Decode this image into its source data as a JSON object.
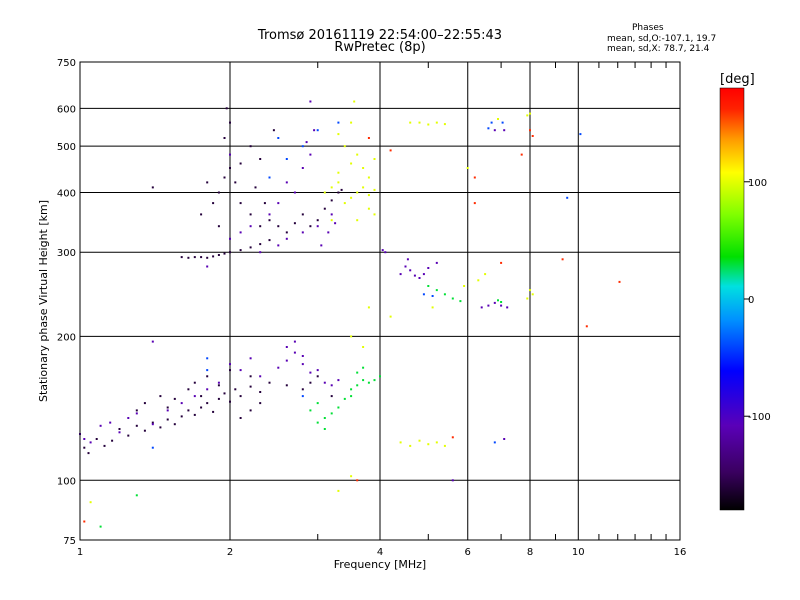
{
  "chart_data": {
    "type": "scatter",
    "title": "Tromsø 20161119 22:54:00–22:55:43",
    "subtitle": "RwPretec (8p)",
    "xlabel": "Frequency [MHz]",
    "ylabel": "Stationary phase Virtual Height [km]",
    "x_scale": "log",
    "y_scale": "log",
    "xlim": [
      1,
      16
    ],
    "ylim": [
      75,
      750
    ],
    "x_ticks": [
      1,
      2,
      4,
      6,
      8,
      10,
      16
    ],
    "x_minor_ticks": [
      3,
      5,
      7,
      9,
      11,
      12,
      13,
      14,
      15
    ],
    "y_ticks": [
      75,
      100,
      200,
      300,
      400,
      500,
      600,
      750
    ],
    "grid": true,
    "stats": {
      "heading": "Phases",
      "line_o": "mean, sd,O:-107.1, 19.7",
      "line_x": "mean, sd,X:  78.7, 21.4"
    },
    "colorbar": {
      "label": "[deg]",
      "range": [
        -180,
        180
      ],
      "ticks": [
        100,
        0,
        -100
      ],
      "colormap": "rainbow"
    },
    "series": [
      {
        "phase": -160,
        "points": [
          [
            1.02,
            117
          ],
          [
            1.04,
            114
          ],
          [
            1.08,
            122
          ],
          [
            1.12,
            118
          ],
          [
            1.16,
            121
          ],
          [
            1.2,
            128
          ],
          [
            1.25,
            124
          ],
          [
            1.3,
            130
          ],
          [
            1.35,
            127
          ],
          [
            1.4,
            132
          ],
          [
            1.45,
            129
          ],
          [
            1.5,
            134
          ],
          [
            1.55,
            131
          ],
          [
            1.6,
            136
          ],
          [
            1.65,
            140
          ],
          [
            1.7,
            137
          ],
          [
            1.75,
            142
          ],
          [
            1.8,
            145
          ],
          [
            1.85,
            139
          ],
          [
            1.9,
            148
          ],
          [
            1.95,
            152
          ],
          [
            2.0,
            146
          ],
          [
            2.05,
            155
          ],
          [
            2.1,
            150
          ],
          [
            2.2,
            157
          ],
          [
            2.3,
            153
          ],
          [
            1.35,
            145
          ],
          [
            1.45,
            150
          ],
          [
            1.55,
            148
          ],
          [
            1.65,
            155
          ],
          [
            1.7,
            160
          ],
          [
            1.8,
            165
          ],
          [
            1.9,
            158
          ],
          [
            2.0,
            170
          ],
          [
            2.2,
            165
          ],
          [
            2.4,
            160
          ],
          [
            1.3,
            140
          ],
          [
            1.5,
            142
          ],
          [
            1.75,
            150
          ],
          [
            1.6,
            293
          ],
          [
            1.65,
            292
          ],
          [
            1.7,
            293
          ],
          [
            1.75,
            293
          ],
          [
            1.8,
            292
          ],
          [
            1.85,
            294
          ],
          [
            1.9,
            296
          ],
          [
            1.95,
            298
          ],
          [
            2.0,
            300
          ],
          [
            2.1,
            303
          ],
          [
            2.2,
            307
          ],
          [
            2.3,
            312
          ],
          [
            2.4,
            318
          ],
          [
            1.9,
            400
          ],
          [
            1.95,
            430
          ],
          [
            2.0,
            450
          ],
          [
            2.05,
            420
          ],
          [
            2.1,
            380
          ],
          [
            2.1,
            460
          ],
          [
            2.2,
            360
          ],
          [
            2.25,
            410
          ],
          [
            2.3,
            340
          ],
          [
            2.35,
            380
          ],
          [
            2.4,
            350
          ],
          [
            2.5,
            340
          ],
          [
            2.6,
            330
          ],
          [
            2.7,
            345
          ],
          [
            2.8,
            360
          ],
          [
            2.9,
            340
          ],
          [
            3.0,
            350
          ],
          [
            3.1,
            370
          ],
          [
            3.2,
            385
          ],
          [
            3.3,
            400
          ],
          [
            3.35,
            405
          ],
          [
            1.95,
            520
          ],
          [
            2.0,
            560
          ],
          [
            1.97,
            600
          ],
          [
            2.2,
            500
          ],
          [
            2.3,
            470
          ],
          [
            2.45,
            540
          ],
          [
            1.85,
            380
          ],
          [
            1.8,
            420
          ],
          [
            1.75,
            360
          ],
          [
            1.9,
            340
          ],
          [
            2.2,
            140
          ],
          [
            2.3,
            145
          ],
          [
            2.1,
            135
          ],
          [
            2.8,
            155
          ],
          [
            2.9,
            160
          ],
          [
            2.6,
            158
          ],
          [
            3.0,
            165
          ],
          [
            3.2,
            150
          ],
          [
            1.4,
            410
          ]
        ]
      },
      {
        "phase": -110,
        "points": [
          [
            1.0,
            125
          ],
          [
            1.02,
            122
          ],
          [
            1.05,
            120
          ],
          [
            1.1,
            130
          ],
          [
            1.15,
            132
          ],
          [
            1.2,
            126
          ],
          [
            1.25,
            135
          ],
          [
            1.3,
            138
          ],
          [
            1.4,
            131
          ],
          [
            1.5,
            140
          ],
          [
            1.6,
            145
          ],
          [
            1.7,
            150
          ],
          [
            1.8,
            155
          ],
          [
            1.9,
            160
          ],
          [
            2.0,
            175
          ],
          [
            2.1,
            170
          ],
          [
            2.2,
            180
          ],
          [
            2.3,
            165
          ],
          [
            2.5,
            172
          ],
          [
            2.6,
            178
          ],
          [
            2.7,
            185
          ],
          [
            2.8,
            175
          ],
          [
            2.9,
            168
          ],
          [
            3.0,
            170
          ],
          [
            3.1,
            160
          ],
          [
            3.2,
            158
          ],
          [
            3.3,
            162
          ],
          [
            1.4,
            195
          ],
          [
            2.6,
            190
          ],
          [
            2.8,
            182
          ],
          [
            1.8,
            280
          ],
          [
            2.0,
            320
          ],
          [
            2.1,
            330
          ],
          [
            2.2,
            340
          ],
          [
            2.4,
            360
          ],
          [
            2.5,
            380
          ],
          [
            2.6,
            420
          ],
          [
            2.7,
            400
          ],
          [
            2.8,
            450
          ],
          [
            2.85,
            510
          ],
          [
            2.9,
            480
          ],
          [
            2.95,
            540
          ],
          [
            2.3,
            300
          ],
          [
            2.5,
            310
          ],
          [
            2.6,
            320
          ],
          [
            2.8,
            330
          ],
          [
            3.0,
            340
          ],
          [
            3.2,
            360
          ],
          [
            2.9,
            620
          ],
          [
            2.0,
            480
          ],
          [
            4.4,
            270
          ],
          [
            4.5,
            280
          ],
          [
            4.55,
            290
          ],
          [
            4.6,
            275
          ],
          [
            4.7,
            268
          ],
          [
            4.8,
            265
          ],
          [
            4.9,
            270
          ],
          [
            5.0,
            278
          ],
          [
            5.2,
            285
          ],
          [
            4.05,
            303
          ],
          [
            4.1,
            300
          ],
          [
            6.4,
            230
          ],
          [
            6.6,
            232
          ],
          [
            6.8,
            235
          ],
          [
            7.0,
            232
          ],
          [
            7.2,
            230
          ],
          [
            7.1,
            122
          ],
          [
            6.8,
            540
          ],
          [
            7.1,
            540
          ],
          [
            5.6,
            100
          ],
          [
            2.7,
            195
          ],
          [
            3.05,
            310
          ],
          [
            3.15,
            330
          ],
          [
            3.25,
            345
          ]
        ]
      },
      {
        "phase": -40,
        "points": [
          [
            1.8,
            170
          ],
          [
            2.8,
            150
          ],
          [
            1.8,
            180
          ],
          [
            2.4,
            430
          ],
          [
            2.6,
            470
          ],
          [
            2.8,
            500
          ],
          [
            3.0,
            540
          ],
          [
            3.3,
            560
          ],
          [
            6.6,
            545
          ],
          [
            6.7,
            560
          ],
          [
            7.05,
            560
          ],
          [
            6.8,
            120
          ],
          [
            10.1,
            530
          ],
          [
            9.5,
            390
          ],
          [
            4.9,
            245
          ],
          [
            5.1,
            243
          ],
          [
            1.4,
            117
          ],
          [
            2.5,
            520
          ]
        ]
      },
      {
        "phase": 30,
        "points": [
          [
            3.6,
            158
          ],
          [
            3.7,
            162
          ],
          [
            3.8,
            160
          ],
          [
            3.9,
            162
          ],
          [
            4.0,
            165
          ],
          [
            3.5,
            155
          ],
          [
            3.6,
            168
          ],
          [
            3.7,
            172
          ],
          [
            2.9,
            140
          ],
          [
            3.0,
            145
          ],
          [
            3.1,
            135
          ],
          [
            3.2,
            138
          ],
          [
            3.3,
            142
          ],
          [
            3.4,
            148
          ],
          [
            3.5,
            150
          ],
          [
            5.0,
            255
          ],
          [
            5.2,
            250
          ],
          [
            5.4,
            245
          ],
          [
            5.6,
            240
          ],
          [
            5.8,
            237
          ],
          [
            6.9,
            238
          ],
          [
            7.0,
            236
          ],
          [
            1.3,
            93
          ],
          [
            1.1,
            80
          ],
          [
            3.1,
            128
          ],
          [
            3.0,
            132
          ]
        ]
      },
      {
        "phase": 100,
        "points": [
          [
            3.1,
            400
          ],
          [
            3.2,
            410
          ],
          [
            3.3,
            420
          ],
          [
            3.4,
            380
          ],
          [
            3.5,
            390
          ],
          [
            3.6,
            400
          ],
          [
            3.7,
            410
          ],
          [
            3.8,
            395
          ],
          [
            3.9,
            405
          ],
          [
            3.5,
            460
          ],
          [
            3.6,
            480
          ],
          [
            3.7,
            450
          ],
          [
            3.8,
            430
          ],
          [
            3.9,
            470
          ],
          [
            3.3,
            440
          ],
          [
            3.4,
            500
          ],
          [
            3.5,
            560
          ],
          [
            3.55,
            620
          ],
          [
            3.2,
            350
          ],
          [
            3.3,
            530
          ],
          [
            3.6,
            350
          ],
          [
            3.8,
            370
          ],
          [
            3.9,
            360
          ],
          [
            3.7,
            190
          ],
          [
            3.5,
            200
          ],
          [
            4.6,
            560
          ],
          [
            4.8,
            560
          ],
          [
            5.0,
            555
          ],
          [
            5.2,
            560
          ],
          [
            5.4,
            556
          ],
          [
            7.9,
            240
          ],
          [
            8.0,
            250
          ],
          [
            8.1,
            245
          ],
          [
            7.9,
            580
          ],
          [
            8.0,
            585
          ],
          [
            6.9,
            570
          ],
          [
            4.4,
            120
          ],
          [
            4.6,
            118
          ],
          [
            4.8,
            121
          ],
          [
            5.0,
            119
          ],
          [
            5.2,
            120
          ],
          [
            5.4,
            118
          ],
          [
            5.9,
            255
          ],
          [
            6.3,
            262
          ],
          [
            6.5,
            270
          ],
          [
            3.8,
            230
          ],
          [
            4.2,
            220
          ],
          [
            5.1,
            230
          ],
          [
            3.5,
            102
          ],
          [
            3.3,
            95
          ],
          [
            6.0,
            450
          ],
          [
            1.05,
            90
          ]
        ]
      },
      {
        "phase": 160,
        "points": [
          [
            1.02,
            82
          ],
          [
            3.6,
            100
          ],
          [
            3.8,
            520
          ],
          [
            4.2,
            490
          ],
          [
            6.2,
            430
          ],
          [
            7.0,
            285
          ],
          [
            8.1,
            525
          ],
          [
            8.0,
            540
          ],
          [
            10.4,
            210
          ],
          [
            7.7,
            480
          ],
          [
            12.1,
            260
          ],
          [
            6.2,
            380
          ],
          [
            9.3,
            290
          ],
          [
            5.6,
            123
          ]
        ]
      }
    ]
  }
}
